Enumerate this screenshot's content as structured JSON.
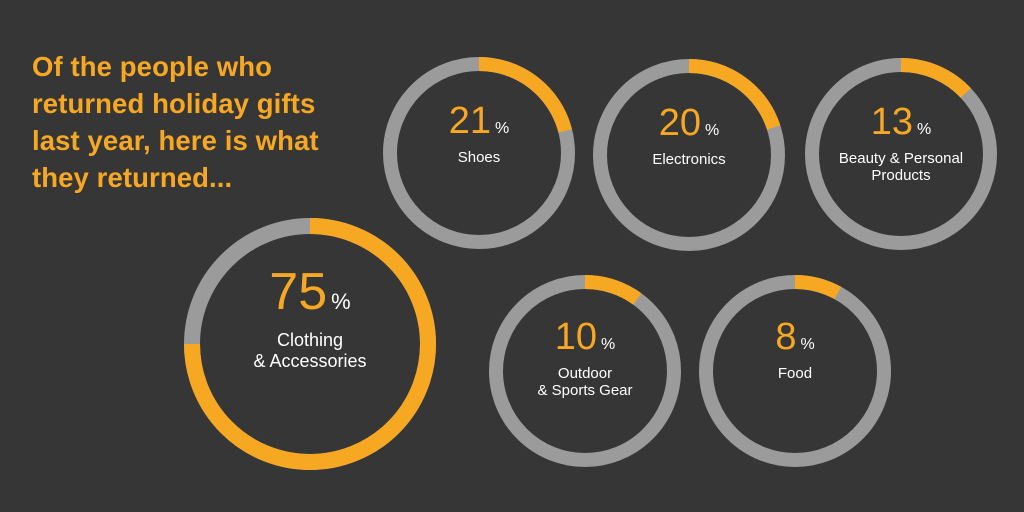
{
  "headline": {
    "lines": [
      "Of the people who",
      "returned holiday gifts",
      "last year, here is what",
      "they returned..."
    ]
  },
  "colors": {
    "background": "#363636",
    "accent": "#f7a823",
    "track": "#9b9b9b",
    "text": "#ffffff"
  },
  "chart_data": {
    "type": "pie",
    "title": "Of the people who returned holiday gifts last year, here is what they returned...",
    "unit": "%",
    "items": [
      {
        "label_lines": [
          "Shoes"
        ],
        "value": 21
      },
      {
        "label_lines": [
          "Electronics"
        ],
        "value": 20
      },
      {
        "label_lines": [
          "Beauty & Personal",
          "Products"
        ],
        "value": 13
      },
      {
        "label_lines": [
          "Clothing",
          "& Accessories"
        ],
        "value": 75
      },
      {
        "label_lines": [
          "Outdoor",
          "& Sports Gear"
        ],
        "value": 10
      },
      {
        "label_lines": [
          "Food"
        ],
        "value": 8
      }
    ]
  }
}
